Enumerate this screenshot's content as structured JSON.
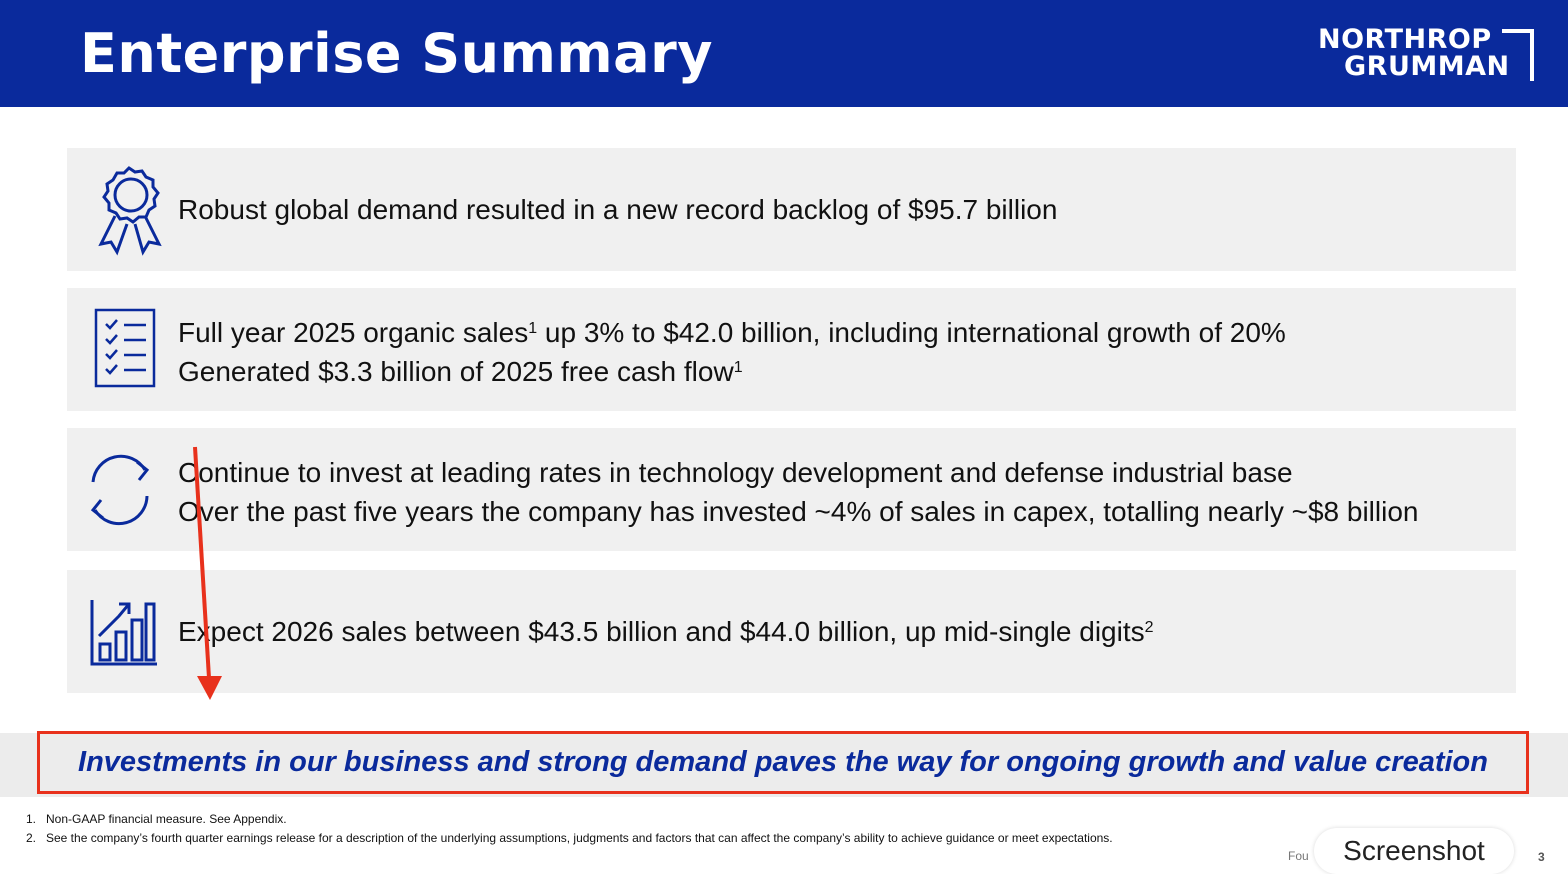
{
  "header": {
    "title": "Enterprise Summary",
    "logo_line1": "NORTHROP",
    "logo_line2": "GRUMMAN"
  },
  "colors": {
    "brand_blue": "#0a2a9c",
    "card_bg": "#f0f0f0",
    "annotation_red": "#e8311c"
  },
  "cards": [
    {
      "icon": "award-ribbon-icon",
      "line1": "Robust global demand resulted in a new record backlog of $95.7 billion"
    },
    {
      "icon": "checklist-icon",
      "line1": "Full year 2025 organic sales",
      "line1_sup": "1",
      "line1_rest": " up 3% to $42.0 billion, including international growth of 20%",
      "line2": "Generated $3.3 billion of 2025 free cash flow",
      "line2_sup": "1"
    },
    {
      "icon": "refresh-cycle-icon",
      "line1": "Continue to invest at leading rates in technology development and defense industrial base",
      "line2": "Over the past five years the company has invested ~4% of sales in capex, totalling nearly ~$8 billion"
    },
    {
      "icon": "growth-chart-icon",
      "line1": "Expect 2026 sales between $43.5 billion and $44.0 billion, up mid-single digits",
      "line1_sup": "2"
    }
  ],
  "banner": "Investments in our business and strong demand paves the way for ongoing growth and value creation",
  "footnotes": [
    {
      "num": "1.",
      "text": "Non-GAAP financial measure. See Appendix."
    },
    {
      "num": "2.",
      "text": "See the company’s fourth quarter earnings release for a description of the underlying assumptions, judgments and factors that can affect the company’s ability to achieve guidance or meet expectations."
    }
  ],
  "footer_partial": "Fou",
  "screenshot_button": "Screenshot",
  "page_number": "3"
}
